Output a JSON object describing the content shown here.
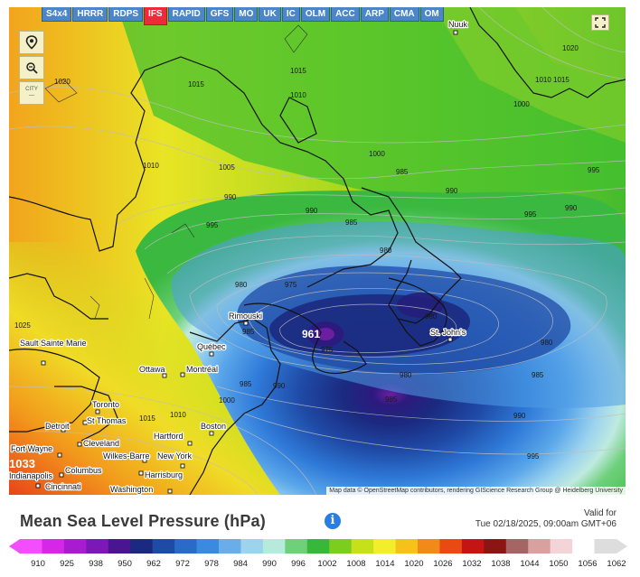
{
  "models": [
    {
      "label": "S4x4",
      "active": false
    },
    {
      "label": "HRRR",
      "active": false
    },
    {
      "label": "RDPS",
      "active": false
    },
    {
      "label": "IFS",
      "active": true
    },
    {
      "label": "RAPID",
      "active": false
    },
    {
      "label": "GFS",
      "active": false
    },
    {
      "label": "MO",
      "active": false
    },
    {
      "label": "UK",
      "active": false
    },
    {
      "label": "IC",
      "active": false
    },
    {
      "label": "OLM",
      "active": false
    },
    {
      "label": "ACC",
      "active": false
    },
    {
      "label": "ARP",
      "active": false
    },
    {
      "label": "CMA",
      "active": false
    },
    {
      "label": "OM",
      "active": false
    }
  ],
  "toolbar": {
    "city_toggle_label": "CITY"
  },
  "map": {
    "attribution": "Map data © OpenStreetMap contributors, rendering GIScience Research Group @ Heidelberg University",
    "low_center_value": "961",
    "edge_value": "1033",
    "isobar_labels": [
      "1020",
      "1015",
      "1015",
      "1010",
      "1020",
      "1010",
      "1015",
      "1000",
      "1010",
      "1005",
      "995",
      "990",
      "1000",
      "990",
      "985",
      "995",
      "990",
      "985",
      "980",
      "980",
      "975",
      "985",
      "975",
      "980",
      "985",
      "980",
      "985",
      "990",
      "995",
      "1025",
      "1015",
      "1010",
      "1000",
      "985",
      "990",
      "980",
      "990",
      "995"
    ],
    "cities": [
      "Nuuk",
      "Rimouski",
      "Québec",
      "Sault Sainte Marie",
      "Ottawa",
      "Montréal",
      "St. John's",
      "Toronto",
      "St Thomas",
      "Detroit",
      "Cleveland",
      "Boston",
      "Hartford",
      "Fort Wayne",
      "Wilkes-Barre",
      "New York",
      "Columbus",
      "Harrisburg",
      "Cincinnati",
      "Washington",
      "Indianapolis"
    ]
  },
  "footer": {
    "title": "Mean Sea Level Pressure (hPa)",
    "valid_label": "Valid for",
    "valid_time": "Tue 02/18/2025, 09:00am GMT+06"
  },
  "legend": {
    "ticks": [
      "910",
      "925",
      "938",
      "950",
      "962",
      "972",
      "978",
      "984",
      "990",
      "996",
      "1002",
      "1008",
      "1014",
      "1020",
      "1026",
      "1032",
      "1038",
      "1044",
      "1050",
      "1056",
      "1062"
    ],
    "colors": [
      "#f34dff",
      "#d626e8",
      "#a81bd0",
      "#7d18b8",
      "#4a1591",
      "#1b2a80",
      "#1f4aa6",
      "#2a6ac9",
      "#3a8ae0",
      "#69aee8",
      "#9ed3ee",
      "#b8eadc",
      "#6fd07b",
      "#38b83a",
      "#7ccd1e",
      "#c6e01a",
      "#f3ee2a",
      "#f6c21a",
      "#f28a1a",
      "#e84a12",
      "#c41414",
      "#8b1414",
      "#a56565",
      "#d9a0a0",
      "#f4d4d8",
      "#ffffff",
      "#dddddd"
    ]
  }
}
